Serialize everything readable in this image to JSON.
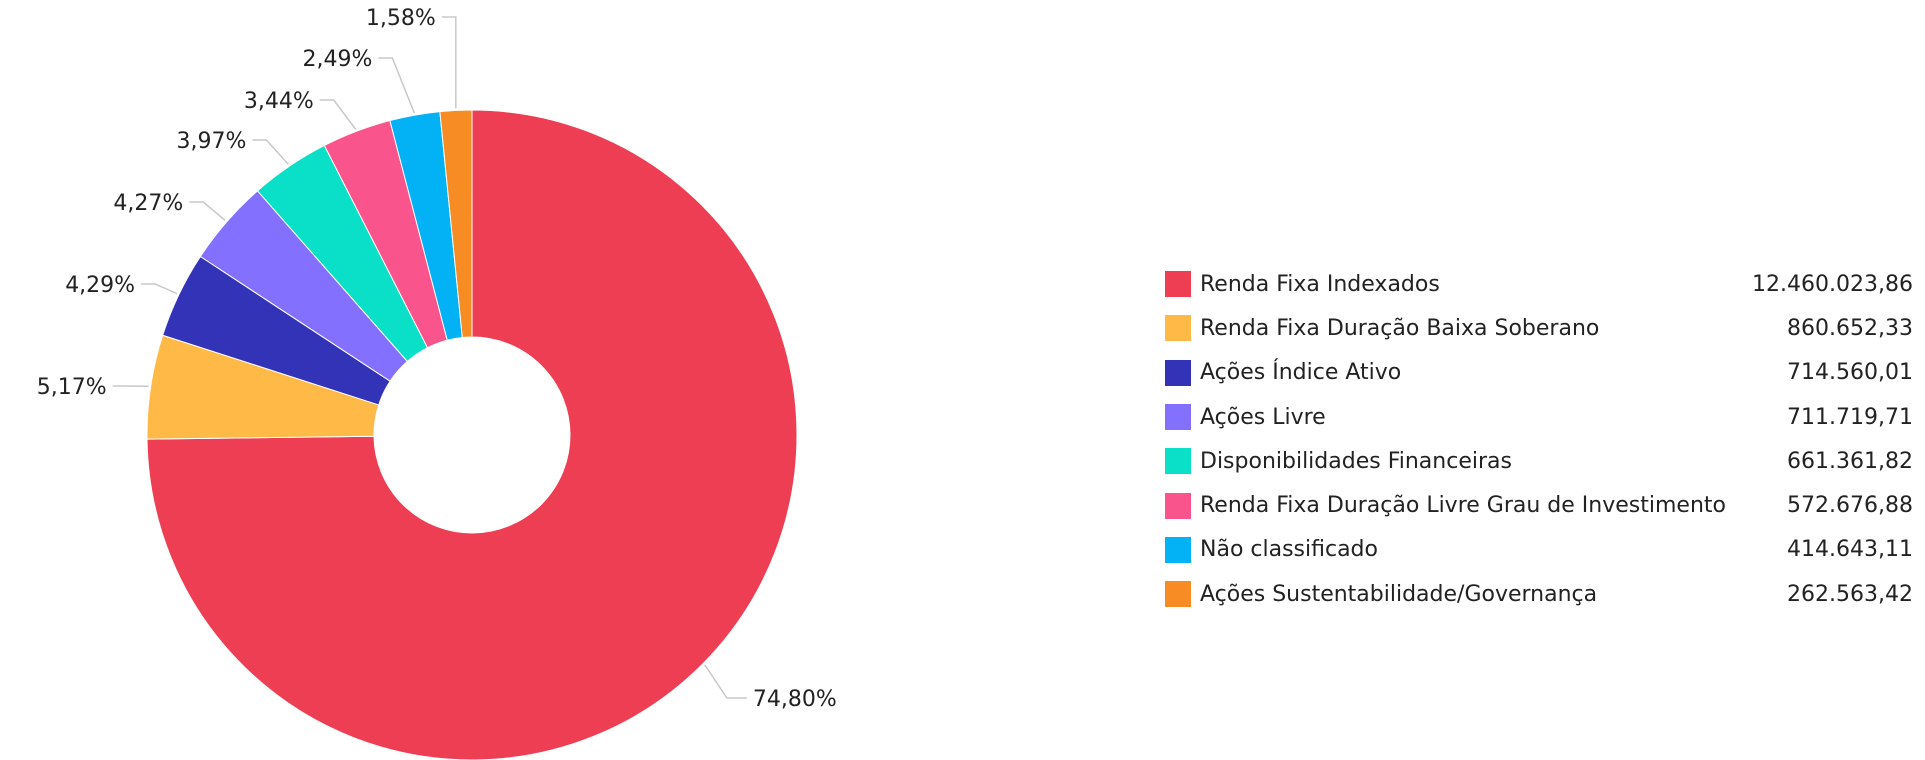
{
  "chart_data": {
    "type": "pie",
    "donut": true,
    "legend_position": "right",
    "slices": [
      {
        "label": "Renda Fixa Indexados",
        "value": 12460023.86,
        "value_text": "12.460.023,86",
        "percent": 74.8,
        "percent_text": "74,80%",
        "color": "#EE3E54"
      },
      {
        "label": "Renda Fixa Duração Baixa Soberano",
        "value": 860652.33,
        "value_text": "860.652,33",
        "percent": 5.17,
        "percent_text": "5,17%",
        "color": "#FFB946"
      },
      {
        "label": "Ações Índice Ativo",
        "value": 714560.01,
        "value_text": "714.560,01",
        "percent": 4.29,
        "percent_text": "4,29%",
        "color": "#3333B8"
      },
      {
        "label": "Ações Livre",
        "value": 711719.71,
        "value_text": "711.719,71",
        "percent": 4.27,
        "percent_text": "4,27%",
        "color": "#8470FF"
      },
      {
        "label": "Disponibilidades Financeiras",
        "value": 661361.82,
        "value_text": "661.361,82",
        "percent": 3.97,
        "percent_text": "3,97%",
        "color": "#0ADFC7"
      },
      {
        "label": "Renda Fixa Duração Livre Grau de Investimento",
        "value": 572676.88,
        "value_text": "572.676,88",
        "percent": 3.44,
        "percent_text": "3,44%",
        "color": "#F9548C"
      },
      {
        "label": "Não classificado",
        "value": 414643.11,
        "value_text": "414.643,11",
        "percent": 2.49,
        "percent_text": "2,49%",
        "color": "#03B2F4"
      },
      {
        "label": "Ações Sustentabilidade/Governança",
        "value": 262563.42,
        "value_text": "262.563,42",
        "percent": 1.58,
        "percent_text": "1,58%",
        "color": "#F68C23"
      }
    ]
  }
}
